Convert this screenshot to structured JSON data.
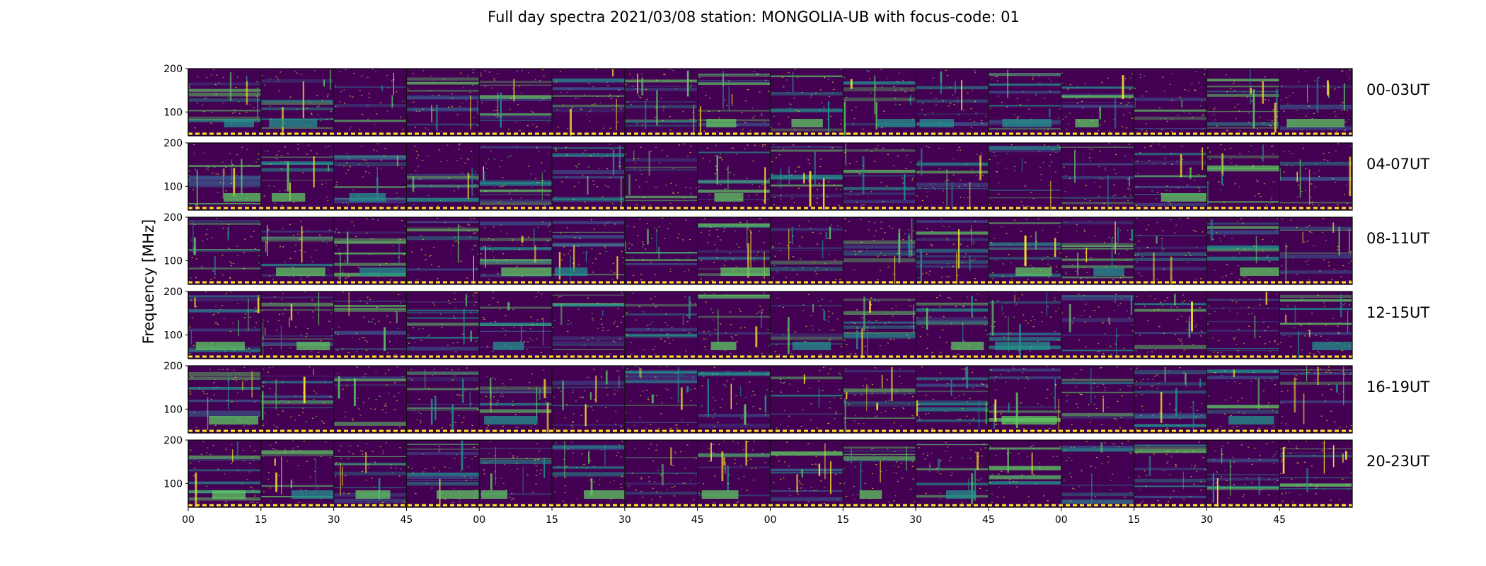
{
  "chart_data": {
    "type": "heatmap",
    "title": "Full day spectra 2021/03/08 station: MONGOLIA-UB with focus-code: 01",
    "ylabel": "Frequency [MHz]",
    "xlabel": "",
    "ylim": [
      45,
      200
    ],
    "y_ticks": [
      "200",
      "100"
    ],
    "x_ticks": [
      "00",
      "15",
      "30",
      "45",
      "00",
      "15",
      "30",
      "45",
      "00",
      "15",
      "30",
      "45",
      "00",
      "15",
      "30",
      "45"
    ],
    "panels_per_row": 16,
    "minutes_per_panel": 15,
    "colormap": [
      "#440154",
      "#3b528b",
      "#21918c",
      "#5ec962",
      "#fde725"
    ],
    "rows": [
      {
        "label": "00-03UT"
      },
      {
        "label": "04-07UT"
      },
      {
        "label": "08-11UT"
      },
      {
        "label": "12-15UT"
      },
      {
        "label": "16-19UT"
      },
      {
        "label": "20-23UT"
      }
    ]
  }
}
